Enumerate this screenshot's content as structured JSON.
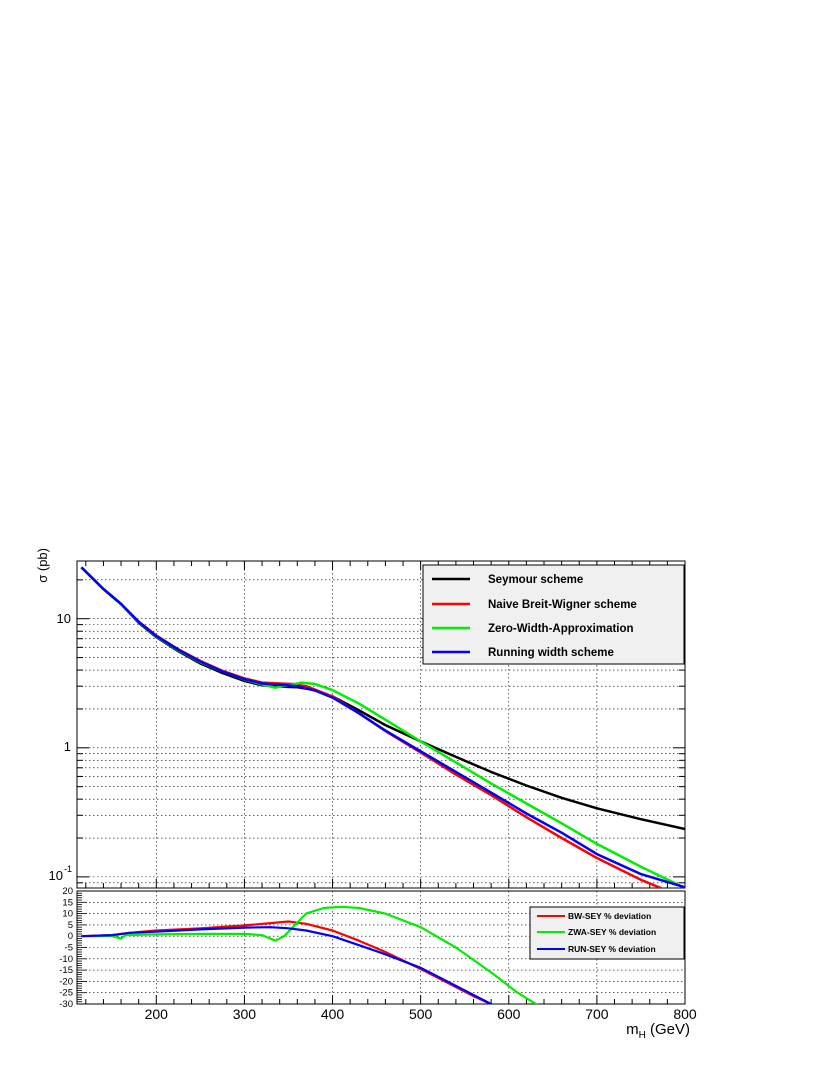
{
  "chart_data": [
    {
      "type": "line",
      "ylabel": "σ (pb)",
      "yscale": "log",
      "xlim": [
        110,
        800
      ],
      "ylim": [
        0.082,
        28
      ],
      "grid": true,
      "legend_position": "top-right",
      "y_ticks": [
        {
          "value": 10,
          "label": "10"
        },
        {
          "value": 1,
          "label": "1"
        },
        {
          "value": 0.1,
          "label_base": "10",
          "label_exp": "-1"
        }
      ],
      "series": [
        {
          "name": "Seymour scheme",
          "color": "#000000",
          "points": [
            [
              115,
              25
            ],
            [
              140,
              17
            ],
            [
              160,
              13
            ],
            [
              180,
              9.3
            ],
            [
              200,
              7.2
            ],
            [
              225,
              5.6
            ],
            [
              250,
              4.5
            ],
            [
              275,
              3.8
            ],
            [
              300,
              3.3
            ],
            [
              320,
              3.05
            ],
            [
              340,
              2.98
            ],
            [
              360,
              2.95
            ],
            [
              380,
              2.8
            ],
            [
              400,
              2.5
            ],
            [
              430,
              1.95
            ],
            [
              460,
              1.5
            ],
            [
              500,
              1.12
            ],
            [
              540,
              0.85
            ],
            [
              580,
              0.65
            ],
            [
              620,
              0.51
            ],
            [
              660,
              0.41
            ],
            [
              700,
              0.34
            ],
            [
              750,
              0.28
            ],
            [
              800,
              0.235
            ]
          ]
        },
        {
          "name": "Naive Breit-Wigner scheme",
          "color": "#ff0000",
          "points": [
            [
              115,
              25
            ],
            [
              140,
              17
            ],
            [
              160,
              13
            ],
            [
              180,
              9.5
            ],
            [
              200,
              7.4
            ],
            [
              225,
              5.8
            ],
            [
              250,
              4.7
            ],
            [
              275,
              3.95
            ],
            [
              300,
              3.45
            ],
            [
              320,
              3.2
            ],
            [
              340,
              3.15
            ],
            [
              355,
              3.12
            ],
            [
              370,
              3.0
            ],
            [
              400,
              2.5
            ],
            [
              430,
              1.85
            ],
            [
              460,
              1.35
            ],
            [
              500,
              0.92
            ],
            [
              540,
              0.62
            ],
            [
              580,
              0.43
            ],
            [
              620,
              0.29
            ],
            [
              660,
              0.2
            ],
            [
              700,
              0.14
            ],
            [
              750,
              0.095
            ],
            [
              780,
              0.078
            ]
          ]
        },
        {
          "name": "Zero-Width-Approximation",
          "color": "#00ee00",
          "points": [
            [
              115,
              25
            ],
            [
              140,
              17
            ],
            [
              160,
              12.9
            ],
            [
              180,
              9.4
            ],
            [
              200,
              7.3
            ],
            [
              225,
              5.7
            ],
            [
              250,
              4.6
            ],
            [
              275,
              3.9
            ],
            [
              300,
              3.38
            ],
            [
              320,
              3.1
            ],
            [
              335,
              2.92
            ],
            [
              350,
              3.05
            ],
            [
              365,
              3.2
            ],
            [
              380,
              3.12
            ],
            [
              400,
              2.8
            ],
            [
              430,
              2.2
            ],
            [
              460,
              1.65
            ],
            [
              500,
              1.12
            ],
            [
              540,
              0.77
            ],
            [
              580,
              0.53
            ],
            [
              620,
              0.37
            ],
            [
              660,
              0.26
            ],
            [
              700,
              0.18
            ],
            [
              750,
              0.12
            ],
            [
              800,
              0.082
            ]
          ]
        },
        {
          "name": "Running width scheme",
          "color": "#0000ff",
          "points": [
            [
              115,
              25
            ],
            [
              140,
              17
            ],
            [
              160,
              13
            ],
            [
              180,
              9.45
            ],
            [
              200,
              7.35
            ],
            [
              225,
              5.75
            ],
            [
              250,
              4.65
            ],
            [
              275,
              3.9
            ],
            [
              300,
              3.4
            ],
            [
              320,
              3.15
            ],
            [
              340,
              3.08
            ],
            [
              360,
              3.0
            ],
            [
              380,
              2.78
            ],
            [
              400,
              2.45
            ],
            [
              430,
              1.85
            ],
            [
              460,
              1.36
            ],
            [
              500,
              0.94
            ],
            [
              540,
              0.65
            ],
            [
              580,
              0.45
            ],
            [
              620,
              0.31
            ],
            [
              660,
              0.22
            ],
            [
              700,
              0.15
            ],
            [
              750,
              0.105
            ],
            [
              800,
              0.083
            ]
          ]
        }
      ]
    },
    {
      "type": "line",
      "xlabel_main": "m",
      "xlabel_sub": "H",
      "xlabel_unit": " (GeV)",
      "xlim": [
        110,
        800
      ],
      "ylim": [
        -30,
        20
      ],
      "grid": true,
      "legend_position": "top-right",
      "x_ticks": [
        200,
        300,
        400,
        500,
        600,
        700,
        800
      ],
      "y_ticks": [
        20,
        15,
        10,
        5,
        0,
        -5,
        -10,
        -15,
        -20,
        -25,
        -30
      ],
      "series": [
        {
          "name": "BW-SEY % deviation",
          "color": "#ff0000",
          "points": [
            [
              115,
              0
            ],
            [
              150,
              0.5
            ],
            [
              170,
              1.5
            ],
            [
              200,
              2.5
            ],
            [
              250,
              3.5
            ],
            [
              300,
              4.8
            ],
            [
              330,
              5.8
            ],
            [
              350,
              6.5
            ],
            [
              370,
              5.5
            ],
            [
              400,
              2.5
            ],
            [
              430,
              -2
            ],
            [
              460,
              -7
            ],
            [
              500,
              -14.5
            ],
            [
              530,
              -20.5
            ],
            [
              560,
              -26.5
            ],
            [
              585,
              -31
            ]
          ]
        },
        {
          "name": "ZWA-SEY % deviation",
          "color": "#00ee00",
          "points": [
            [
              115,
              0
            ],
            [
              150,
              0
            ],
            [
              160,
              -1
            ],
            [
              165,
              0.5
            ],
            [
              200,
              0.8
            ],
            [
              250,
              1
            ],
            [
              300,
              1
            ],
            [
              320,
              0.5
            ],
            [
              335,
              -2
            ],
            [
              345,
              0
            ],
            [
              355,
              4
            ],
            [
              370,
              10
            ],
            [
              390,
              12.5
            ],
            [
              410,
              13
            ],
            [
              430,
              12.5
            ],
            [
              460,
              10
            ],
            [
              500,
              4
            ],
            [
              540,
              -5
            ],
            [
              580,
              -16
            ],
            [
              610,
              -25
            ],
            [
              635,
              -31
            ]
          ]
        },
        {
          "name": "RUN-SEY % deviation",
          "color": "#0000ff",
          "points": [
            [
              115,
              0
            ],
            [
              150,
              0.5
            ],
            [
              170,
              1.5
            ],
            [
              200,
              2
            ],
            [
              250,
              3
            ],
            [
              300,
              3.8
            ],
            [
              330,
              4
            ],
            [
              350,
              3.5
            ],
            [
              370,
              2.5
            ],
            [
              400,
              0
            ],
            [
              430,
              -4
            ],
            [
              460,
              -8
            ],
            [
              500,
              -14
            ],
            [
              530,
              -20
            ],
            [
              560,
              -26
            ],
            [
              585,
              -31
            ]
          ]
        }
      ]
    }
  ]
}
